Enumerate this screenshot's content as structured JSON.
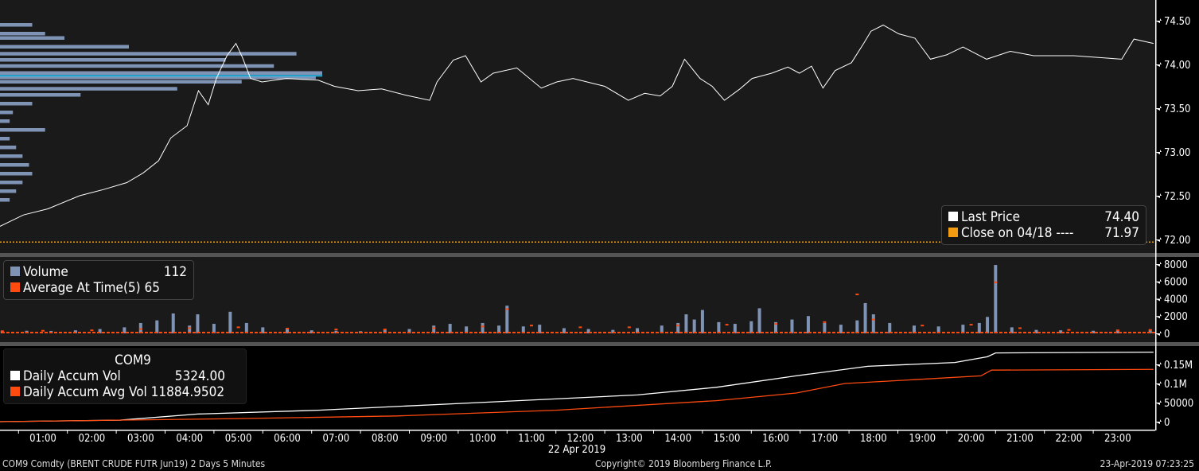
{
  "colors": {
    "price": "#ffffff",
    "close": "#f39c12",
    "volume": "#7f93b5",
    "avg": "#ff4a10",
    "accum": "#ffffff",
    "accum_avg": "#ff4a10",
    "profile": "#7f93b5",
    "profile_poc": "#25b7e6"
  },
  "price_legend": {
    "items": [
      {
        "label": "Last Price",
        "value": "74.40",
        "color": "#ffffff"
      },
      {
        "label": "Close on 04/18 ----",
        "value": "71.97",
        "color": "#f39c12"
      }
    ]
  },
  "volume_legend": {
    "items": [
      {
        "label": "Volume",
        "value": "112",
        "color": "#7f93b5"
      },
      {
        "label": "Average At Time(5)",
        "value": "65",
        "color": "#ff4a10"
      }
    ]
  },
  "accum_legend": {
    "title": "COM9",
    "items": [
      {
        "label": "Daily Accum Vol",
        "value": "5324.00",
        "color": "#ffffff"
      },
      {
        "label": "Daily Accum Avg Vol",
        "value": "11884.9502",
        "color": "#ff4a10"
      }
    ]
  },
  "footer": {
    "left": "COM9 Comdty (BRENT CRUDE FUTR  Jun19) 2 Days 5 Minutes",
    "center": "Copyright© 2019 Bloomberg Finance L.P.",
    "right": "23-Apr-2019 07:23:25"
  },
  "chart_data": [
    {
      "type": "line",
      "name": "price",
      "yticks": [
        "72.00",
        "72.50",
        "73.00",
        "73.50",
        "74.00",
        "74.50"
      ],
      "ylim": [
        71.9,
        74.6
      ],
      "close_line": 71.97,
      "poc_price": 73.87,
      "x_ticks": [
        "01:00",
        "02:00",
        "03:00",
        "04:00",
        "05:00",
        "06:00",
        "07:00",
        "08:00",
        "09:00",
        "10:00",
        "11:00",
        "12:00",
        "13:00",
        "14:00",
        "15:00",
        "16:00",
        "17:00",
        "18:00",
        "19:00",
        "20:00",
        "21:00",
        "22:00",
        "23:00"
      ],
      "x_date": "22 Apr 2019",
      "series": [
        [
          "00:07",
          72.15
        ],
        [
          "00:36",
          72.28
        ],
        [
          "01:06",
          72.35
        ],
        [
          "01:45",
          72.5
        ],
        [
          "02:14",
          72.57
        ],
        [
          "02:43",
          72.65
        ],
        [
          "03:03",
          72.76
        ],
        [
          "03:22",
          72.9
        ],
        [
          "03:37",
          73.16
        ],
        [
          "03:57",
          73.3
        ],
        [
          "04:11",
          73.7
        ],
        [
          "04:23",
          73.54
        ],
        [
          "04:33",
          73.84
        ],
        [
          "04:46",
          74.1
        ],
        [
          "04:57",
          74.24
        ],
        [
          "05:05",
          74.08
        ],
        [
          "05:15",
          73.84
        ],
        [
          "05:29",
          73.8
        ],
        [
          "05:59",
          73.84
        ],
        [
          "06:38",
          73.82
        ],
        [
          "06:58",
          73.75
        ],
        [
          "07:27",
          73.7
        ],
        [
          "07:56",
          73.72
        ],
        [
          "08:25",
          73.65
        ],
        [
          "08:55",
          73.59
        ],
        [
          "09:04",
          73.8
        ],
        [
          "09:24",
          74.05
        ],
        [
          "09:39",
          74.1
        ],
        [
          "09:58",
          73.8
        ],
        [
          "10:13",
          73.9
        ],
        [
          "10:42",
          73.96
        ],
        [
          "11:12",
          73.73
        ],
        [
          "11:31",
          73.8
        ],
        [
          "11:51",
          73.84
        ],
        [
          "12:30",
          73.75
        ],
        [
          "12:59",
          73.59
        ],
        [
          "13:19",
          73.67
        ],
        [
          "13:38",
          73.64
        ],
        [
          "13:53",
          73.75
        ],
        [
          "14:08",
          74.06
        ],
        [
          "14:27",
          73.84
        ],
        [
          "14:42",
          73.75
        ],
        [
          "14:57",
          73.59
        ],
        [
          "15:16",
          73.72
        ],
        [
          "15:31",
          73.84
        ],
        [
          "15:55",
          73.9
        ],
        [
          "16:15",
          73.97
        ],
        [
          "16:29",
          73.9
        ],
        [
          "16:44",
          73.98
        ],
        [
          "16:58",
          73.73
        ],
        [
          "17:13",
          73.93
        ],
        [
          "17:33",
          74.02
        ],
        [
          "17:48",
          74.24
        ],
        [
          "17:57",
          74.38
        ],
        [
          "18:12",
          74.45
        ],
        [
          "18:31",
          74.35
        ],
        [
          "18:51",
          74.3
        ],
        [
          "19:10",
          74.06
        ],
        [
          "19:30",
          74.11
        ],
        [
          "19:50",
          74.2
        ],
        [
          "20:19",
          74.06
        ],
        [
          "20:48",
          74.15
        ],
        [
          "21:17",
          74.1
        ],
        [
          "22:06",
          74.1
        ],
        [
          "23:05",
          74.06
        ],
        [
          "23:20",
          74.29
        ],
        [
          "23:44",
          74.24
        ]
      ],
      "volume_profile": [
        [
          74.45,
          10
        ],
        [
          74.35,
          14
        ],
        [
          74.3,
          20
        ],
        [
          74.2,
          40
        ],
        [
          74.12,
          92
        ],
        [
          74.05,
          70
        ],
        [
          73.98,
          85
        ],
        [
          73.9,
          100
        ],
        [
          73.85,
          98
        ],
        [
          73.8,
          75
        ],
        [
          73.72,
          55
        ],
        [
          73.65,
          25
        ],
        [
          73.55,
          10
        ],
        [
          73.45,
          4
        ],
        [
          73.35,
          3
        ],
        [
          73.25,
          14
        ],
        [
          73.15,
          3
        ],
        [
          73.05,
          5
        ],
        [
          72.95,
          7
        ],
        [
          72.85,
          9
        ],
        [
          72.75,
          10
        ],
        [
          72.65,
          7
        ],
        [
          72.55,
          5
        ],
        [
          72.45,
          3
        ]
      ]
    },
    {
      "type": "bar",
      "name": "volume",
      "yticks": [
        "0",
        "2000",
        "4000",
        "6000",
        "8000"
      ],
      "ylim": [
        0,
        8300
      ],
      "series": [
        [
          "00:10",
          250
        ],
        [
          "00:40",
          300
        ],
        [
          "01:10",
          280
        ],
        [
          "01:40",
          350
        ],
        [
          "02:10",
          500
        ],
        [
          "02:40",
          700
        ],
        [
          "03:00",
          1200
        ],
        [
          "03:20",
          1500
        ],
        [
          "03:40",
          2300
        ],
        [
          "04:00",
          900
        ],
        [
          "04:10",
          2200
        ],
        [
          "04:30",
          1100
        ],
        [
          "04:50",
          2500
        ],
        [
          "05:10",
          1200
        ],
        [
          "05:30",
          700
        ],
        [
          "06:00",
          500
        ],
        [
          "06:30",
          350
        ],
        [
          "07:00",
          300
        ],
        [
          "07:30",
          250
        ],
        [
          "08:00",
          400
        ],
        [
          "08:30",
          500
        ],
        [
          "09:00",
          900
        ],
        [
          "09:20",
          1100
        ],
        [
          "09:40",
          800
        ],
        [
          "10:00",
          1200
        ],
        [
          "10:20",
          900
        ],
        [
          "10:30",
          3200
        ],
        [
          "10:50",
          800
        ],
        [
          "11:10",
          1000
        ],
        [
          "11:40",
          600
        ],
        [
          "12:10",
          500
        ],
        [
          "12:40",
          400
        ],
        [
          "13:10",
          600
        ],
        [
          "13:40",
          900
        ],
        [
          "14:00",
          1200
        ],
        [
          "14:10",
          2200
        ],
        [
          "14:20",
          1600
        ],
        [
          "14:30",
          2700
        ],
        [
          "14:50",
          1300
        ],
        [
          "15:10",
          1100
        ],
        [
          "15:30",
          1400
        ],
        [
          "15:40",
          2900
        ],
        [
          "16:00",
          1300
        ],
        [
          "16:20",
          1600
        ],
        [
          "16:40",
          2000
        ],
        [
          "17:00",
          1200
        ],
        [
          "17:20",
          1000
        ],
        [
          "17:40",
          1500
        ],
        [
          "17:50",
          3500
        ],
        [
          "18:00",
          2200
        ],
        [
          "18:20",
          1200
        ],
        [
          "18:50",
          900
        ],
        [
          "19:20",
          800
        ],
        [
          "19:50",
          1000
        ],
        [
          "20:10",
          1200
        ],
        [
          "20:20",
          1900
        ],
        [
          "20:30",
          7900
        ],
        [
          "20:50",
          700
        ],
        [
          "21:20",
          400
        ],
        [
          "21:50",
          350
        ],
        [
          "22:30",
          300
        ],
        [
          "23:00",
          280
        ],
        [
          "23:40",
          400
        ]
      ],
      "avg": [
        [
          "00:10",
          250
        ],
        [
          "01:00",
          300
        ],
        [
          "02:00",
          350
        ],
        [
          "03:00",
          500
        ],
        [
          "04:00",
          600
        ],
        [
          "05:00",
          700
        ],
        [
          "06:00",
          550
        ],
        [
          "07:00",
          450
        ],
        [
          "08:00",
          450
        ],
        [
          "09:00",
          600
        ],
        [
          "10:00",
          800
        ],
        [
          "10:30",
          2800
        ],
        [
          "11:00",
          900
        ],
        [
          "12:00",
          700
        ],
        [
          "13:00",
          700
        ],
        [
          "14:00",
          900
        ],
        [
          "15:00",
          1000
        ],
        [
          "16:00",
          1100
        ],
        [
          "17:00",
          1300
        ],
        [
          "17:40",
          4500
        ],
        [
          "18:00",
          1600
        ],
        [
          "19:00",
          900
        ],
        [
          "20:00",
          1000
        ],
        [
          "20:30",
          5900
        ],
        [
          "21:00",
          600
        ],
        [
          "22:00",
          400
        ],
        [
          "23:00",
          350
        ],
        [
          "23:40",
          400
        ]
      ]
    },
    {
      "type": "line",
      "name": "accum",
      "yticks": [
        "0",
        "50000",
        "0.1M",
        "0.15M"
      ],
      "ylim": [
        0,
        190000
      ],
      "series": [
        {
          "name": "Daily Accum Vol",
          "values": [
            [
              "00:07",
              0
            ],
            [
              "02:35",
              4000
            ],
            [
              "04:10",
              20000
            ],
            [
              "06:38",
              30000
            ],
            [
              "09:55",
              50000
            ],
            [
              "13:10",
              70000
            ],
            [
              "14:47",
              90000
            ],
            [
              "16:25",
              120000
            ],
            [
              "17:53",
              145000
            ],
            [
              "19:40",
              155000
            ],
            [
              "20:20",
              170000
            ],
            [
              "20:30",
              180000
            ],
            [
              "23:44",
              182000
            ]
          ]
        },
        {
          "name": "Daily Accum Avg Vol",
          "values": [
            [
              "00:07",
              0
            ],
            [
              "05:00",
              8000
            ],
            [
              "08:15",
              15000
            ],
            [
              "11:30",
              30000
            ],
            [
              "14:47",
              55000
            ],
            [
              "16:25",
              75000
            ],
            [
              "17:25",
              100000
            ],
            [
              "18:50",
              110000
            ],
            [
              "20:12",
              120000
            ],
            [
              "20:25",
              135000
            ],
            [
              "23:44",
              137000
            ]
          ]
        }
      ]
    }
  ]
}
